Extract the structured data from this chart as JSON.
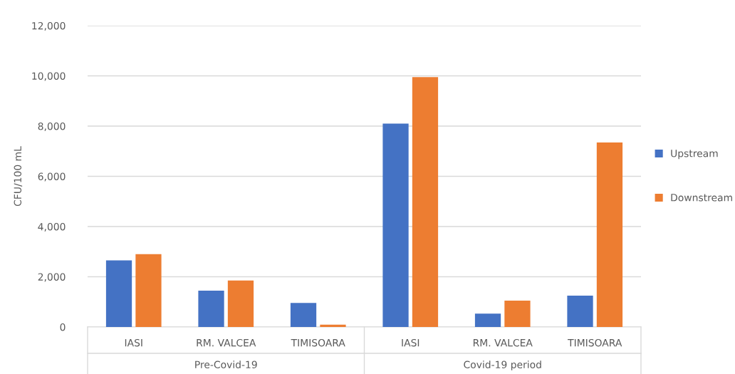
{
  "chart_data": {
    "type": "bar",
    "ylabel": "CFU/100 mL",
    "categories": [
      "IASI",
      "RM. VALCEA",
      "TIMISOARA",
      "IASI",
      "RM. VALCEA",
      "TIMISOARA"
    ],
    "series": [
      {
        "name": "Upstream",
        "color": "#4472c4",
        "values": [
          2650,
          1450,
          960,
          8100,
          530,
          1250
        ]
      },
      {
        "name": "Downstream",
        "color": "#ed7d31",
        "values": [
          2900,
          1850,
          90,
          9950,
          1050,
          7350
        ]
      }
    ],
    "annotations": [
      "Pre-Covid-19",
      "Covid-19 period"
    ],
    "ylim": [
      0,
      12000
    ],
    "yticks": [
      {
        "value": 0,
        "label": "0"
      },
      {
        "value": 2000,
        "label": "2,000"
      },
      {
        "value": 4000,
        "label": "4,000"
      },
      {
        "value": 6000,
        "label": "6,000"
      },
      {
        "value": 8000,
        "label": "8,000"
      },
      {
        "value": 10000,
        "label": "10,000"
      },
      {
        "value": 12000,
        "label": "12,000"
      }
    ],
    "grid": "y",
    "legend": "right"
  }
}
